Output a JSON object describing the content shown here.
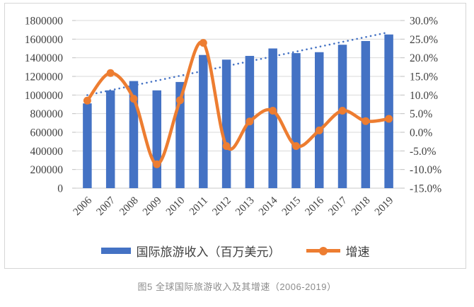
{
  "figure": {
    "caption": "图5 全球国际旅游收入及其增速（2006-2019）"
  },
  "legend": {
    "bar_label": "国际旅游收入（百万美元）",
    "line_label": "增速"
  },
  "chart_data": {
    "type": "bar",
    "subtype": "combo-bar-line-dual-axis",
    "title": "",
    "categories": [
      "2006",
      "2007",
      "2008",
      "2009",
      "2010",
      "2011",
      "2012",
      "2013",
      "2014",
      "2015",
      "2016",
      "2017",
      "2018",
      "2019"
    ],
    "series": [
      {
        "name": "国际旅游收入（百万美元）",
        "type": "bar",
        "axis": "left",
        "color": "#4472C4",
        "values": [
          910000,
          1050000,
          1150000,
          1050000,
          1140000,
          1430000,
          1380000,
          1420000,
          1500000,
          1450000,
          1460000,
          1540000,
          1580000,
          1650000
        ]
      },
      {
        "name": "增速",
        "type": "line",
        "axis": "right",
        "color": "#ED7D31",
        "smooth": true,
        "values": [
          8.5,
          15.9,
          9.0,
          -8.6,
          8.6,
          24.0,
          -3.7,
          2.9,
          5.8,
          -3.7,
          0.5,
          5.8,
          3.0,
          3.6
        ]
      },
      {
        "name": "线性趋势线",
        "type": "trendline",
        "axis": "left",
        "color": "#4472C4",
        "style": "dotted"
      }
    ],
    "left_axis": {
      "min": 0,
      "max": 1800000,
      "step": 200000,
      "tick_labels": [
        "1800000",
        "1600000",
        "1400000",
        "1200000",
        "1000000",
        "800000",
        "600000",
        "400000",
        "200000",
        "0"
      ]
    },
    "right_axis": {
      "min": -15,
      "max": 30,
      "step": 5,
      "tick_labels": [
        "30.0%",
        "25.0%",
        "20.0%",
        "15.0%",
        "10.0%",
        "5.0%",
        "0.0%",
        "-5.0%",
        "-10.0%",
        "-15.0%"
      ]
    },
    "grid": true,
    "legend_position": "bottom",
    "colors": {
      "grid": "#D9D9D9",
      "axis_line": "#C9C9C9",
      "tick": "#BFBFBF",
      "axis_text": "#3F3F3F",
      "caption_text": "#8C8C8C",
      "border": "#D6D6D6"
    }
  }
}
